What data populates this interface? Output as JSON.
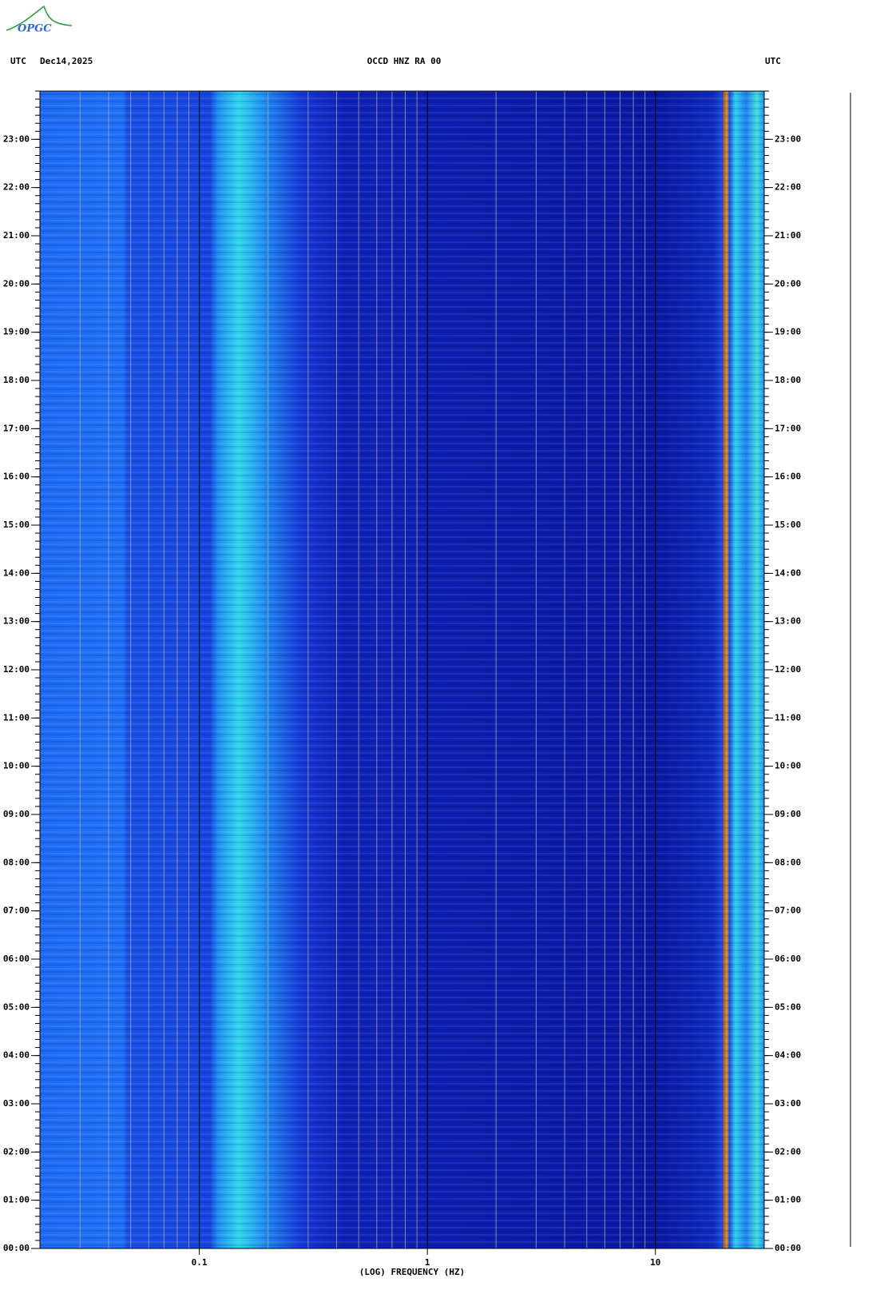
{
  "logo": "OPGC",
  "chart_data": {
    "type": "spectrogram",
    "title": "OCCD HNZ RA 00",
    "date": "Dec14,2025",
    "left_zone": "UTC",
    "right_zone": "UTC",
    "xlabel": "(LOG) FREQUENCY (HZ)",
    "xscale": "log",
    "xlim": [
      0.02,
      30
    ],
    "xticks": [
      0.1,
      1,
      10
    ],
    "xgrid_minor": [
      0.03,
      0.04,
      0.05,
      0.06,
      0.07,
      0.08,
      0.09,
      0.2,
      0.3,
      0.4,
      0.5,
      0.6,
      0.7,
      0.8,
      0.9,
      2,
      3,
      4,
      5,
      6,
      7,
      8,
      9,
      20
    ],
    "ylim": [
      0,
      24
    ],
    "yticks": [
      {
        "value": 0,
        "label": "00:00"
      },
      {
        "value": 1,
        "label": "01:00"
      },
      {
        "value": 2,
        "label": "02:00"
      },
      {
        "value": 3,
        "label": "03:00"
      },
      {
        "value": 4,
        "label": "04:00"
      },
      {
        "value": 5,
        "label": "05:00"
      },
      {
        "value": 6,
        "label": "06:00"
      },
      {
        "value": 7,
        "label": "07:00"
      },
      {
        "value": 8,
        "label": "08:00"
      },
      {
        "value": 9,
        "label": "09:00"
      },
      {
        "value": 10,
        "label": "10:00"
      },
      {
        "value": 11,
        "label": "11:00"
      },
      {
        "value": 12,
        "label": "12:00"
      },
      {
        "value": 13,
        "label": "13:00"
      },
      {
        "value": 14,
        "label": "14:00"
      },
      {
        "value": 15,
        "label": "15:00"
      },
      {
        "value": 16,
        "label": "16:00"
      },
      {
        "value": 17,
        "label": "17:00"
      },
      {
        "value": 18,
        "label": "18:00"
      },
      {
        "value": 19,
        "label": "19:00"
      },
      {
        "value": 20,
        "label": "20:00"
      },
      {
        "value": 21,
        "label": "21:00"
      },
      {
        "value": 22,
        "label": "22:00"
      },
      {
        "value": 23,
        "label": "23:00"
      }
    ]
  }
}
